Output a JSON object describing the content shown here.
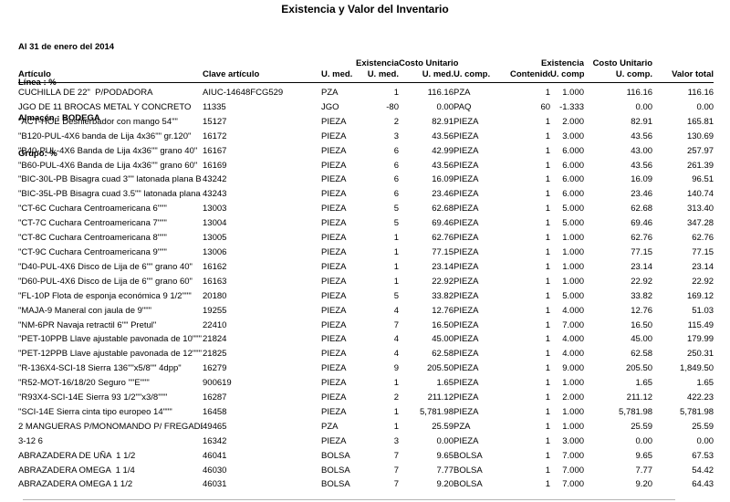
{
  "report": {
    "title": "Existencia y Valor del Inventario",
    "meta": {
      "date_line": "Al 31 de enero del 2014",
      "linea": "Línea : %",
      "almacen": "Almacén : BODEGA",
      "grupo": "Grupo: %"
    },
    "columns": {
      "articulo": "Artículo",
      "clave": "Clave artículo",
      "umed": "U. med.",
      "existencia_umed_l1": "Existencia",
      "existencia_umed_l2": "U. med.",
      "costo_unitario_umed_l1": "Costo Unitario",
      "costo_unitario_umed_l2": "U. med.",
      "ucomp_sub": "U. comp.",
      "contenido": "Contenido",
      "existencia_ucomp_l1": "Existencia",
      "existencia_ucomp_l2": "U. comp.",
      "costo_unitario_ucomp_l1": "Costo Unitario",
      "costo_unitario_ucomp_l2": "U. comp.",
      "valor_total": "Valor total"
    },
    "rows": [
      [
        "CUCHILLA DE 22\"  P/PODADORA",
        "AIUC-14648FCG529",
        "PZA",
        "1",
        "116.16",
        "PZA",
        "1",
        "1.000",
        "116.16",
        "116.16"
      ],
      [
        "JGO DE 11 BROCAS METAL Y CONCRETO",
        "11335",
        "JGO",
        "-80",
        "0.00",
        "PAQ",
        "60",
        "-1.333",
        "0.00",
        "0.00"
      ],
      [
        "\"ACT-HOE Deshierbador con mango 54\"\"",
        "15127",
        "PIEZA",
        "2",
        "82.91",
        "PIEZA",
        "1",
        "2.000",
        "82.91",
        "165.81"
      ],
      [
        "\"B120-PUL-4X6 banda de Lija 4x36\"\" gr.120\"",
        "16172",
        "PIEZA",
        "3",
        "43.56",
        "PIEZA",
        "1",
        "3.000",
        "43.56",
        "130.69"
      ],
      [
        "\"B40-PUL-4X6 Banda de Lija 4x36\"\" grano 40\"",
        "16167",
        "PIEZA",
        "6",
        "42.99",
        "PIEZA",
        "1",
        "6.000",
        "43.00",
        "257.97"
      ],
      [
        "\"B60-PUL-4X6 Banda de Lija 4x36\"\" grano 60\"",
        "16169",
        "PIEZA",
        "6",
        "43.56",
        "PIEZA",
        "1",
        "6.000",
        "43.56",
        "261.39"
      ],
      [
        "\"BIC-30L-PB Bisagra cuad 3\"\" latonada plana B",
        "43242",
        "PIEZA",
        "6",
        "16.09",
        "PIEZA",
        "1",
        "6.000",
        "16.09",
        "96.51"
      ],
      [
        "\"BIC-35L-PB Bisagra cuad 3.5\"\" latonada plana",
        "43243",
        "PIEZA",
        "6",
        "23.46",
        "PIEZA",
        "1",
        "6.000",
        "23.46",
        "140.74"
      ],
      [
        "\"CT-6C Cuchara Centroamericana 6\"\"\"",
        "13003",
        "PIEZA",
        "5",
        "62.68",
        "PIEZA",
        "1",
        "5.000",
        "62.68",
        "313.40"
      ],
      [
        "\"CT-7C Cuchara Centroamericana 7\"\"\"",
        "13004",
        "PIEZA",
        "5",
        "69.46",
        "PIEZA",
        "1",
        "5.000",
        "69.46",
        "347.28"
      ],
      [
        "\"CT-8C Cuchara Centroamericana 8\"\"\"",
        "13005",
        "PIEZA",
        "1",
        "62.76",
        "PIEZA",
        "1",
        "1.000",
        "62.76",
        "62.76"
      ],
      [
        "\"CT-9C Cuchara Centroamericana 9\"\"\"",
        "13006",
        "PIEZA",
        "1",
        "77.15",
        "PIEZA",
        "1",
        "1.000",
        "77.15",
        "77.15"
      ],
      [
        "\"D40-PUL-4X6 Disco de Lija de 6\"\" grano 40\"",
        "16162",
        "PIEZA",
        "1",
        "23.14",
        "PIEZA",
        "1",
        "1.000",
        "23.14",
        "23.14"
      ],
      [
        "\"D60-PUL-4X6 Disco de Lija de 6\"\" grano 60\"",
        "16163",
        "PIEZA",
        "1",
        "22.92",
        "PIEZA",
        "1",
        "1.000",
        "22.92",
        "22.92"
      ],
      [
        "\"FL-10P Flota de esponja económica 9 1/2\"\"\"",
        "20180",
        "PIEZA",
        "5",
        "33.82",
        "PIEZA",
        "1",
        "5.000",
        "33.82",
        "169.12"
      ],
      [
        "\"MAJA-9 Maneral con jaula de 9\"\"\"",
        "19255",
        "PIEZA",
        "4",
        "12.76",
        "PIEZA",
        "1",
        "4.000",
        "12.76",
        "51.03"
      ],
      [
        "\"NM-6PR Navaja retractil 6\"\" Pretul\"",
        "22410",
        "PIEZA",
        "7",
        "16.50",
        "PIEZA",
        "1",
        "7.000",
        "16.50",
        "115.49"
      ],
      [
        "\"PET-10PPB Llave ajustable pavonada de 10\"\"\"",
        "21824",
        "PIEZA",
        "4",
        "45.00",
        "PIEZA",
        "1",
        "4.000",
        "45.00",
        "179.99"
      ],
      [
        "\"PET-12PPB Llave ajustable pavonada de 12\"\"\"",
        "21825",
        "PIEZA",
        "4",
        "62.58",
        "PIEZA",
        "1",
        "4.000",
        "62.58",
        "250.31"
      ],
      [
        "\"R-136X4-SCI-18 Sierra 136\"\"x5/8\"\" 4dpp\"",
        "16279",
        "PIEZA",
        "9",
        "205.50",
        "PIEZA",
        "1",
        "9.000",
        "205.50",
        "1,849.50"
      ],
      [
        "\"R52-MOT-16/18/20 Seguro \"\"E\"\"\"",
        "900619",
        "PIEZA",
        "1",
        "1.65",
        "PIEZA",
        "1",
        "1.000",
        "1.65",
        "1.65"
      ],
      [
        "\"R93X4-SCI-14E Sierra 93 1/2\"\"x3/8\"\"\"",
        "16287",
        "PIEZA",
        "2",
        "211.12",
        "PIEZA",
        "1",
        "2.000",
        "211.12",
        "422.23"
      ],
      [
        "\"SCI-14E Sierra cinta tipo europeo 14\"\"\"",
        "16458",
        "PIEZA",
        "1",
        "5,781.98",
        "PIEZA",
        "1",
        "1.000",
        "5,781.98",
        "5,781.98"
      ],
      [
        "2 MANGUERAS P/MONOMANDO P/ FREGADER",
        "49465",
        "PZA",
        "1",
        "25.59",
        "PZA",
        "1",
        "1.000",
        "25.59",
        "25.59"
      ],
      [
        "3-12 6",
        "16342",
        "PIEZA",
        "3",
        "0.00",
        "PIEZA",
        "1",
        "3.000",
        "0.00",
        "0.00"
      ],
      [
        "ABRAZADERA DE UÑA  1 1/2",
        "46041",
        "BOLSA",
        "7",
        "9.65",
        "BOLSA",
        "1",
        "7.000",
        "9.65",
        "67.53"
      ],
      [
        "ABRAZADERA OMEGA  1 1/4",
        "46030",
        "BOLSA",
        "7",
        "7.77",
        "BOLSA",
        "1",
        "7.000",
        "7.77",
        "54.42"
      ],
      [
        "ABRAZADERA OMEGA 1 1/2",
        "46031",
        "BOLSA",
        "7",
        "9.20",
        "BOLSA",
        "1",
        "7.000",
        "9.20",
        "64.43"
      ]
    ]
  }
}
